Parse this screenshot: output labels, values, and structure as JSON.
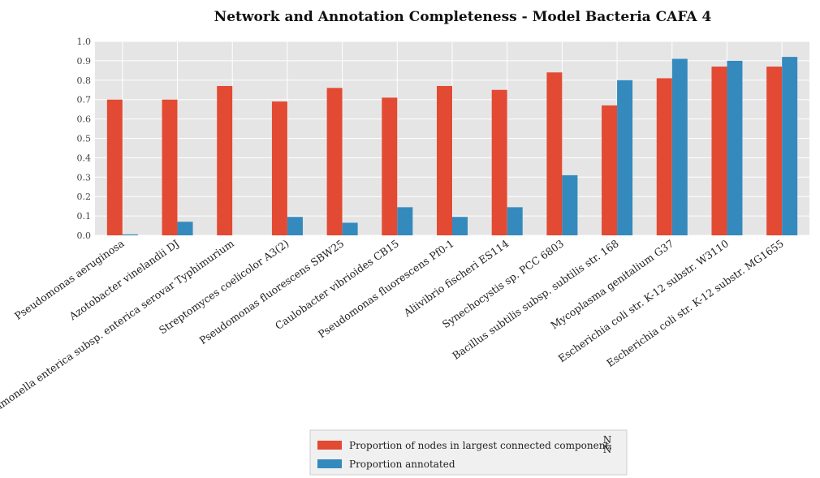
{
  "chart_data": {
    "type": "bar",
    "title": "Network and Annotation Completeness - Model Bacteria CAFA 4",
    "xlabel": "",
    "ylabel": "",
    "ylim": [
      0,
      1.0
    ],
    "yticks": [
      "0.0",
      "0.1",
      "0.2",
      "0.3",
      "0.4",
      "0.5",
      "0.6",
      "0.7",
      "0.8",
      "0.9",
      "1.0"
    ],
    "grid": true,
    "legend_position": "bottom-center",
    "categories": [
      "Pseudomonas aeruginosa",
      "Azotobacter vinelandii DJ",
      "Salmonella enterica subsp. enterica serovar Typhimurium",
      "Streptomyces coelicolor A3(2)",
      "Pseudomonas fluorescens SBW25",
      "Caulobacter vibrioides CB15",
      "Pseudomonas fluorescens Pf0-1",
      "Aliivibrio fischeri ES114",
      "Synechocystis sp. PCC 6803",
      "Bacillus subtilis subsp. subtilis str. 168",
      "Mycoplasma genitalium G37",
      "Escherichia coli str. K-12 substr. W3110",
      "Escherichia coli str. K-12 substr. MG1655"
    ],
    "series": [
      {
        "name": "Proportion of nodes in largest connected component,",
        "name_fraction": {
          "num": "N",
          "den": "N"
        },
        "color": "#E24A33",
        "values": [
          0.7,
          0.7,
          0.77,
          0.69,
          0.76,
          0.71,
          0.77,
          0.75,
          0.84,
          0.67,
          0.81,
          0.87,
          0.87
        ]
      },
      {
        "name": "Proportion annotated",
        "color": "#348ABD",
        "values": [
          0.005,
          0.07,
          0.0,
          0.095,
          0.065,
          0.145,
          0.095,
          0.145,
          0.31,
          0.8,
          0.91,
          0.9,
          0.92
        ]
      }
    ]
  }
}
